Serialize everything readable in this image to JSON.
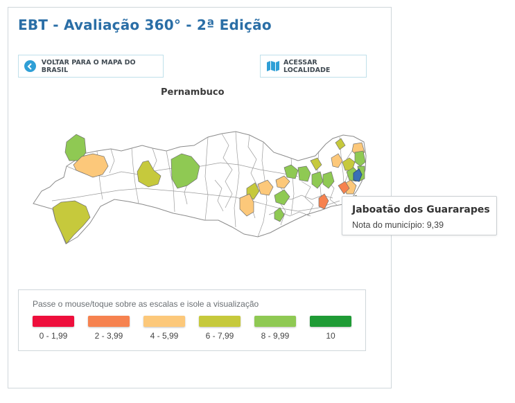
{
  "page": {
    "title": "EBT - Avaliação 360° - 2ª Edição"
  },
  "buttons": {
    "back_label": "VOLTAR PARA O MAPA DO BRASIL",
    "back_icon": "chevron-left-icon",
    "access_label": "ACESSAR LOCALIDADE",
    "access_icon": "map-icon"
  },
  "map": {
    "state_name": "Pernambuco",
    "highlighted_municipality": "Jaboatão dos Guararapes"
  },
  "tooltip": {
    "title": "Jaboatão dos Guararapes",
    "line": "Nota do município: 9,39"
  },
  "legend": {
    "instruction": "Passe o mouse/toque sobre as escalas e isole a visualização",
    "items": [
      {
        "label": "0 - 1,99",
        "color": "#ee0f3c"
      },
      {
        "label": "2 - 3,99",
        "color": "#f6824f"
      },
      {
        "label": "4 - 5,99",
        "color": "#fcc87a"
      },
      {
        "label": "6 - 7,99",
        "color": "#c6c93c"
      },
      {
        "label": "8 - 9,99",
        "color": "#8fc953"
      },
      {
        "label": "10",
        "color": "#1f9b35"
      }
    ]
  },
  "colors": {
    "title": "#2a6ea6",
    "highlight": "#3a6fb5",
    "border": "#cfd6da",
    "map_stroke": "#7b7b7b"
  }
}
